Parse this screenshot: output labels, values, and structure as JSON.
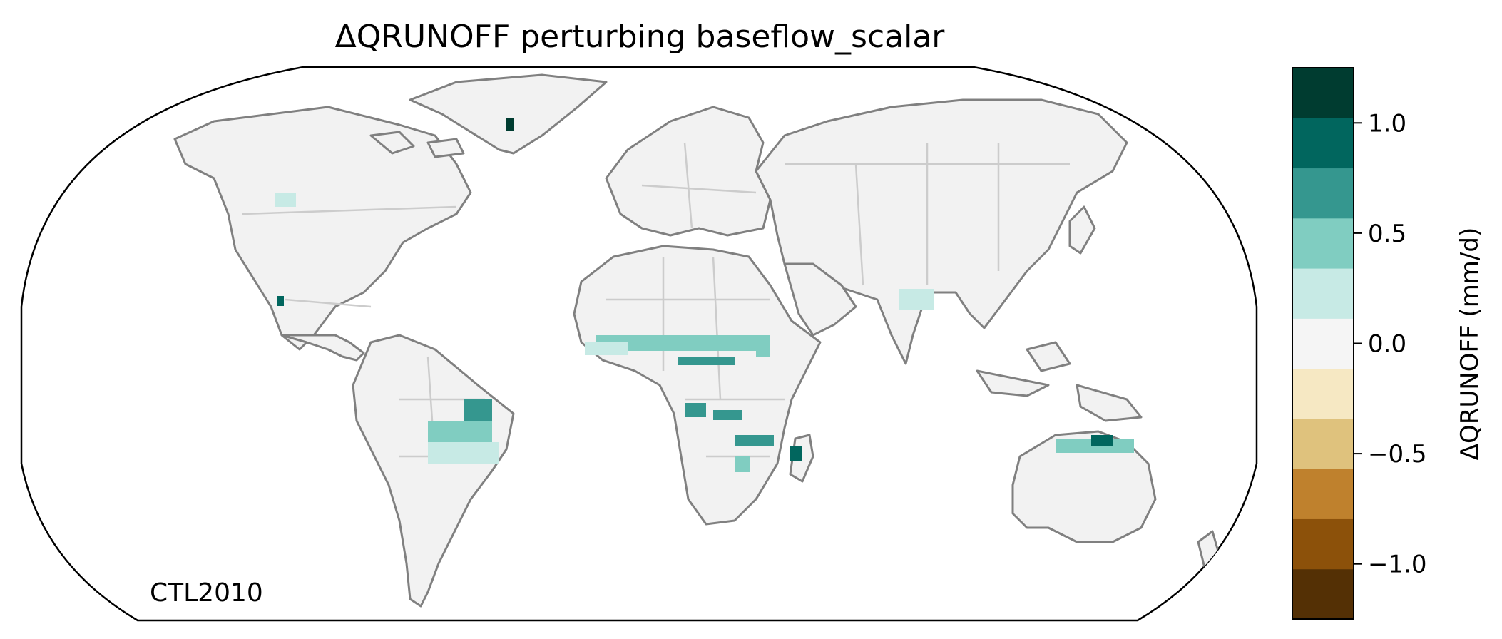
{
  "title": "ΔQRUNOFF perturbing baseflow_scalar",
  "panel_label": "CTL2010",
  "colorbar": {
    "label": "ΔQRUNOFF (mm/d)",
    "colors": [
      "#543005",
      "#8c510a",
      "#bf812d",
      "#dfc27d",
      "#f6e8c3",
      "#f5f5f5",
      "#c7eae5",
      "#80cdc1",
      "#35978f",
      "#01665e",
      "#003c30"
    ],
    "range": [
      -1.25,
      1.25
    ],
    "ticks": [
      {
        "value": 1.0,
        "label": "1.0"
      },
      {
        "value": 0.5,
        "label": "0.5"
      },
      {
        "value": 0.0,
        "label": "0.0"
      },
      {
        "value": -0.5,
        "label": "−0.5"
      },
      {
        "value": -1.0,
        "label": "−1.0"
      }
    ]
  },
  "chart_data": {
    "type": "heatmap",
    "title": "ΔQRUNOFF perturbing baseflow_scalar",
    "projection": "Robinson",
    "colorbar_label": "ΔQRUNOFF (mm/d)",
    "vmin": -1.25,
    "vmax": 1.25,
    "levels": [
      -1.25,
      -1.0,
      -0.75,
      -0.5,
      -0.25,
      0.0,
      0.25,
      0.5,
      0.75,
      1.0,
      1.25
    ],
    "annotation": "CTL2010",
    "anomaly_cells": [
      {
        "region": "Sahel / West Africa",
        "value": 0.4
      },
      {
        "region": "Central African Republic belt",
        "value": 0.8
      },
      {
        "region": "Angola / Zambia",
        "value": 0.5
      },
      {
        "region": "Madagascar",
        "value": 1.1
      },
      {
        "region": "Mozambique",
        "value": 0.7
      },
      {
        "region": "NE Brazil",
        "value": 0.6
      },
      {
        "region": "Central Brazil (Cerrado)",
        "value": 0.3
      },
      {
        "region": "N Australia",
        "value": 0.6
      },
      {
        "region": "India",
        "value": 0.2
      },
      {
        "region": "W Mexico",
        "value": 0.9
      },
      {
        "region": "Greenland E coast",
        "value": 1.2
      },
      {
        "region": "Pacific NW USA",
        "value": 0.3
      }
    ]
  }
}
